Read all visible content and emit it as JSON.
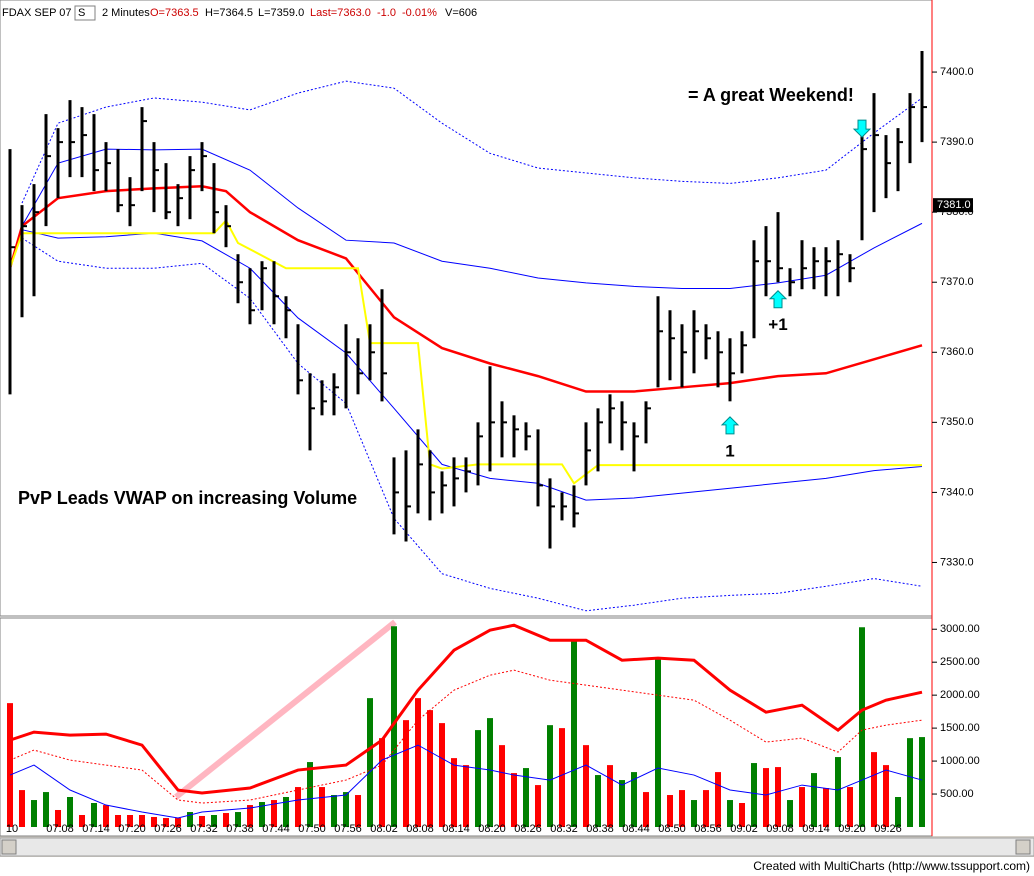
{
  "footer": "Created with MultiCharts (http://www.tssupport.com)",
  "chart_data": [
    {
      "type": "ohlc",
      "header": [
        {
          "text": "FDAX SEP 07",
          "color": "#000000"
        },
        {
          "text": "S",
          "color": "#000000"
        },
        {
          "text": "2 Minutes",
          "color": "#000000"
        },
        {
          "text": "O=7363.5",
          "color": "#cc0000"
        },
        {
          "text": "H=7364.5",
          "color": "#000000"
        },
        {
          "text": "L=7359.0",
          "color": "#000000"
        },
        {
          "text": "Last=7363.0",
          "color": "#cc0000"
        },
        {
          "text": "-1.0",
          "color": "#cc0000"
        },
        {
          "text": "-0.01%",
          "color": "#cc0000"
        },
        {
          "text": "V=606",
          "color": "#000000"
        }
      ],
      "annotations": [
        "PvP Leads VWAP on increasing Volume",
        "= A great Weekend!"
      ],
      "bar_color": "#000000",
      "high": [
        7389,
        7381,
        7384,
        7394,
        7392,
        7396,
        7395,
        7394,
        7390,
        7389,
        7385,
        7395,
        7390,
        7387,
        7384,
        7388,
        7390,
        7387,
        7381,
        7374,
        7372,
        7373,
        7373,
        7368,
        7364,
        7357,
        7356,
        7357,
        7364,
        7362,
        7364,
        7369,
        7345,
        7346,
        7349,
        7346,
        7343,
        7345,
        7345,
        7350,
        7358,
        7353,
        7351,
        7350,
        7349,
        7342,
        7340,
        7341,
        7350,
        7352,
        7354,
        7353,
        7350,
        7353,
        7368,
        7366,
        7364,
        7366,
        7364,
        7363,
        7362,
        7363,
        7376,
        7378,
        7380,
        7372,
        7376,
        7375,
        7375,
        7376,
        7374,
        7393,
        7397,
        7391,
        7392,
        7397,
        7403
      ],
      "low": [
        7354,
        7365,
        7368,
        7378,
        7382,
        7385,
        7385,
        7383,
        7383,
        7380,
        7378,
        7383,
        7380,
        7379,
        7378,
        7379,
        7383,
        7377,
        7375,
        7367,
        7364,
        7366,
        7364,
        7362,
        7354,
        7346,
        7351,
        7351,
        7352,
        7354,
        7356,
        7353,
        7334,
        7333,
        7337,
        7336,
        7337,
        7338,
        7340,
        7341,
        7343,
        7345,
        7345,
        7346,
        7338,
        7332,
        7336,
        7335,
        7341,
        7343,
        7347,
        7346,
        7343,
        7347,
        7355,
        7356,
        7355,
        7357,
        7359,
        7355,
        7353,
        7357,
        7362,
        7368,
        7370,
        7368,
        7369,
        7369,
        7368,
        7368,
        7370,
        7376,
        7380,
        7382,
        7383,
        7387,
        7390
      ],
      "close": [
        7375,
        7378,
        7380,
        7388,
        7390,
        7390,
        7391,
        7386,
        7387,
        7381,
        7381,
        7393,
        7386,
        7380,
        7382,
        7386,
        7388,
        7380,
        7378,
        7370,
        7366,
        7372,
        7368,
        7366,
        7356,
        7352,
        7353,
        7355,
        7360,
        7357,
        7360,
        7357,
        7340,
        7338,
        7344,
        7340,
        7341,
        7342,
        7343,
        7348,
        7350,
        7350,
        7349,
        7348,
        7341,
        7338,
        7338,
        7337,
        7346,
        7350,
        7352,
        7350,
        7348,
        7352,
        7363,
        7362,
        7360,
        7363,
        7362,
        7360,
        7357,
        7361,
        7373,
        7373,
        7372,
        7370,
        7372,
        7373,
        7373,
        7374,
        7372,
        7389,
        7391,
        7387,
        7390,
        7395,
        7395
      ],
      "lines": [
        {
          "color": "#0000ff",
          "style": "dotted",
          "width": 1,
          "x": [
            1,
            4,
            8,
            12,
            16,
            20,
            24,
            28,
            32,
            36,
            40,
            44,
            48,
            52,
            56,
            60,
            64,
            68,
            72,
            76
          ],
          "values": [
            7381.3,
            7392.7,
            7395,
            7396.3,
            7395.7,
            7394.6,
            7397,
            7398.7,
            7397.7,
            7392.7,
            7388.4,
            7386.3,
            7385.6,
            7384.9,
            7384.4,
            7384.1,
            7384.9,
            7386,
            7391.3,
            7396.3
          ]
        },
        {
          "color": "#0000ff",
          "style": "dotted",
          "width": 1,
          "x": [
            1,
            4,
            8,
            12,
            16,
            20,
            24,
            28,
            32,
            36,
            40,
            44,
            48,
            52,
            56,
            60,
            64,
            68,
            72,
            76
          ],
          "values": [
            7376.3,
            7373,
            7372,
            7372,
            7372.7,
            7367.7,
            7358.4,
            7352.7,
            7336.3,
            7328.4,
            7326.3,
            7324.9,
            7323.1,
            7323.9,
            7324.9,
            7325.3,
            7325.6,
            7326.6,
            7327.7,
            7326.6
          ]
        },
        {
          "color": "#0000ff",
          "style": "solid",
          "width": 1,
          "x": [
            1,
            4,
            8,
            12,
            16,
            20,
            24,
            28,
            32,
            36,
            40,
            44,
            48,
            52,
            56,
            60,
            64,
            68,
            72,
            76
          ],
          "values": [
            7378,
            7387,
            7389,
            7388.9,
            7389,
            7386,
            7380.6,
            7376,
            7375.6,
            7373,
            7372,
            7370.6,
            7369.9,
            7369.4,
            7369.1,
            7369.1,
            7369.9,
            7371,
            7374.9,
            7378.4
          ]
        },
        {
          "color": "#0000ff",
          "style": "solid",
          "width": 1,
          "x": [
            1,
            4,
            8,
            12,
            16,
            20,
            24,
            28,
            32,
            36,
            40,
            44,
            48,
            52,
            56,
            60,
            64,
            68,
            72,
            76
          ],
          "values": [
            7377.5,
            7376.3,
            7376.5,
            7377,
            7375.9,
            7372,
            7364.9,
            7359.9,
            7352,
            7344,
            7342,
            7341.3,
            7338.9,
            7339.2,
            7339.9,
            7340.6,
            7341.3,
            7342,
            7343.1,
            7343.7
          ]
        },
        {
          "color": "#ff0000",
          "style": "solid",
          "width": 2.5,
          "x": [
            0,
            1,
            4,
            8,
            12,
            16,
            18,
            20,
            24,
            28,
            32,
            36,
            40,
            44,
            48,
            52,
            56,
            60,
            64,
            68,
            72,
            76
          ],
          "values": [
            7372,
            7378,
            7382,
            7383,
            7383.4,
            7383.7,
            7383,
            7380,
            7376,
            7373.4,
            7365,
            7360.6,
            7358.4,
            7356.6,
            7354.4,
            7354.4,
            7355,
            7355.6,
            7356.6,
            7357,
            7359,
            7361
          ]
        },
        {
          "color": "#ffff00",
          "style": "solid",
          "width": 2,
          "x": [
            0,
            1,
            17,
            18,
            19,
            23,
            29,
            30,
            34,
            35,
            36,
            39,
            46,
            47,
            49,
            76
          ],
          "values": [
            7372,
            7377,
            7377,
            7378.8,
            7375.6,
            7372,
            7372,
            7361.3,
            7361.3,
            7344,
            7343.4,
            7344,
            7344,
            7341.3,
            7343.9,
            7343.9
          ]
        }
      ],
      "signals": [
        {
          "x": 60,
          "value": 7349.5,
          "direction": "up",
          "label": "1"
        },
        {
          "x": 64,
          "value": 7367.5,
          "direction": "up",
          "label": "+1"
        },
        {
          "x": 71,
          "value": 7392,
          "direction": "down"
        }
      ],
      "last": {
        "value": 7381,
        "label": "7381.0"
      },
      "ylim": [
        7322.5,
        7410
      ],
      "yticks": [
        {
          "value": 7330,
          "label": "7330.0"
        },
        {
          "value": 7340,
          "label": "7340.0"
        },
        {
          "value": 7350,
          "label": "7350.0"
        },
        {
          "value": 7360,
          "label": "7360.0"
        },
        {
          "value": 7370,
          "label": "7370.0"
        },
        {
          "value": 7380,
          "label": "7380.0"
        },
        {
          "value": 7390,
          "label": "7390.0"
        },
        {
          "value": 7400,
          "label": "7400.0"
        }
      ]
    },
    {
      "type": "bar",
      "categories": [
        "10",
        null,
        null,
        null,
        "07:08",
        null,
        null,
        "07:14",
        null,
        null,
        "07:20",
        null,
        null,
        "07:26",
        null,
        null,
        "07:32",
        null,
        null,
        "07:38",
        null,
        null,
        "07:44",
        null,
        null,
        "07:50",
        null,
        null,
        "07:56",
        null,
        null,
        "08:02",
        null,
        null,
        "08:08",
        null,
        null,
        "08:14",
        null,
        null,
        "08:20",
        null,
        null,
        "08:26",
        null,
        null,
        "08:32",
        null,
        null,
        "08:38",
        null,
        null,
        "08:44",
        null,
        null,
        "08:50",
        null,
        null,
        "08:56",
        null,
        null,
        "09:02",
        null,
        null,
        "09:08",
        null,
        null,
        "09:14",
        null,
        null,
        "09:20",
        null,
        null,
        "09:26",
        null,
        null,
        null
      ],
      "values": [
        1879,
        560,
        409,
        530,
        258,
        455,
        182,
        364,
        333,
        182,
        182,
        182,
        152,
        136,
        136,
        227,
        167,
        182,
        212,
        227,
        333,
        379,
        409,
        455,
        606,
        985,
        606,
        485,
        530,
        485,
        1955,
        1348,
        3045,
        1621,
        1955,
        1773,
        1576,
        1045,
        939,
        1470,
        1652,
        1242,
        818,
        894,
        636,
        1545,
        1500,
        2833,
        1242,
        788,
        939,
        712,
        833,
        530,
        2561,
        485,
        560,
        409,
        560,
        833,
        409,
        364,
        970,
        894,
        909,
        409,
        606,
        818,
        591,
        1061,
        606,
        3030,
        1136,
        939,
        455,
        1348,
        1364
      ],
      "colors": [
        "#ff0000",
        "#ff0000",
        "#008000",
        "#008000",
        "#ff0000",
        "#008000",
        "#ff0000",
        "#008000",
        "#ff0000",
        "#ff0000",
        "#ff0000",
        "#ff0000",
        "#ff0000",
        "#ff0000",
        "#ff0000",
        "#008000",
        "#ff0000",
        "#008000",
        "#ff0000",
        "#008000",
        "#ff0000",
        "#008000",
        "#ff0000",
        "#008000",
        "#ff0000",
        "#008000",
        "#ff0000",
        "#008000",
        "#008000",
        "#ff0000",
        "#008000",
        "#ff0000",
        "#008000",
        "#ff0000",
        "#ff0000",
        "#ff0000",
        "#ff0000",
        "#ff0000",
        "#ff0000",
        "#008000",
        "#008000",
        "#ff0000",
        "#ff0000",
        "#008000",
        "#ff0000",
        "#008000",
        "#ff0000",
        "#008000",
        "#ff0000",
        "#008000",
        "#ff0000",
        "#008000",
        "#008000",
        "#ff0000",
        "#008000",
        "#ff0000",
        "#ff0000",
        "#008000",
        "#ff0000",
        "#ff0000",
        "#008000",
        "#ff0000",
        "#008000",
        "#ff0000",
        "#ff0000",
        "#008000",
        "#ff0000",
        "#008000",
        "#ff0000",
        "#008000",
        "#ff0000",
        "#008000",
        "#ff0000",
        "#ff0000",
        "#008000",
        "#008000",
        "#008000"
      ],
      "lines": [
        {
          "color": "#ff0000",
          "style": "dotted",
          "width": 1,
          "x": [
            0,
            2,
            5,
            8,
            11,
            14,
            16,
            20,
            24,
            28,
            31,
            34,
            37,
            40,
            42,
            45,
            48,
            51,
            54,
            57,
            60,
            63,
            66,
            69,
            71,
            73,
            76
          ],
          "values": [
            1015,
            1167,
            1015,
            939,
            864,
            409,
            364,
            409,
            561,
            712,
            939,
            1621,
            2076,
            2303,
            2379,
            2227,
            2152,
            2076,
            2000,
            1924,
            1621,
            1288,
            1348,
            1136,
            1470,
            1545,
            1621
          ]
        },
        {
          "color": "#0000ff",
          "style": "solid",
          "width": 1,
          "x": [
            0,
            2,
            5,
            8,
            11,
            14,
            16,
            20,
            24,
            28,
            31,
            34,
            37,
            40,
            42,
            45,
            48,
            51,
            54,
            57,
            60,
            63,
            66,
            69,
            71,
            73,
            76
          ],
          "values": [
            788,
            939,
            561,
            333,
            227,
            136,
            227,
            288,
            409,
            485,
            1015,
            1242,
            939,
            864,
            788,
            712,
            939,
            636,
            894,
            788,
            561,
            485,
            636,
            561,
            712,
            864,
            712
          ]
        },
        {
          "color": "#ff0000",
          "style": "solid",
          "width": 3,
          "x": [
            0,
            2,
            5,
            8,
            11,
            14,
            16,
            20,
            24,
            28,
            31,
            34,
            37,
            40,
            42,
            45,
            48,
            51,
            54,
            57,
            60,
            63,
            66,
            69,
            71,
            73,
            76
          ],
          "values": [
            1318,
            1439,
            1394,
            1409,
            1242,
            560,
            515,
            591,
            864,
            939,
            1318,
            2076,
            2682,
            2985,
            3061,
            2833,
            2833,
            2530,
            2561,
            2530,
            2076,
            1742,
            1848,
            1470,
            1773,
            1924,
            2045
          ]
        }
      ],
      "ylim": [
        0,
        3140
      ],
      "yticks": [
        {
          "value": 500,
          "label": "500.00"
        },
        {
          "value": 1000,
          "label": "1000.00"
        },
        {
          "value": 1500,
          "label": "1500.00"
        },
        {
          "value": 2000,
          "label": "2000.00"
        },
        {
          "value": 2500,
          "label": "2500.00"
        },
        {
          "value": 3000,
          "label": "3000.00"
        }
      ]
    }
  ]
}
